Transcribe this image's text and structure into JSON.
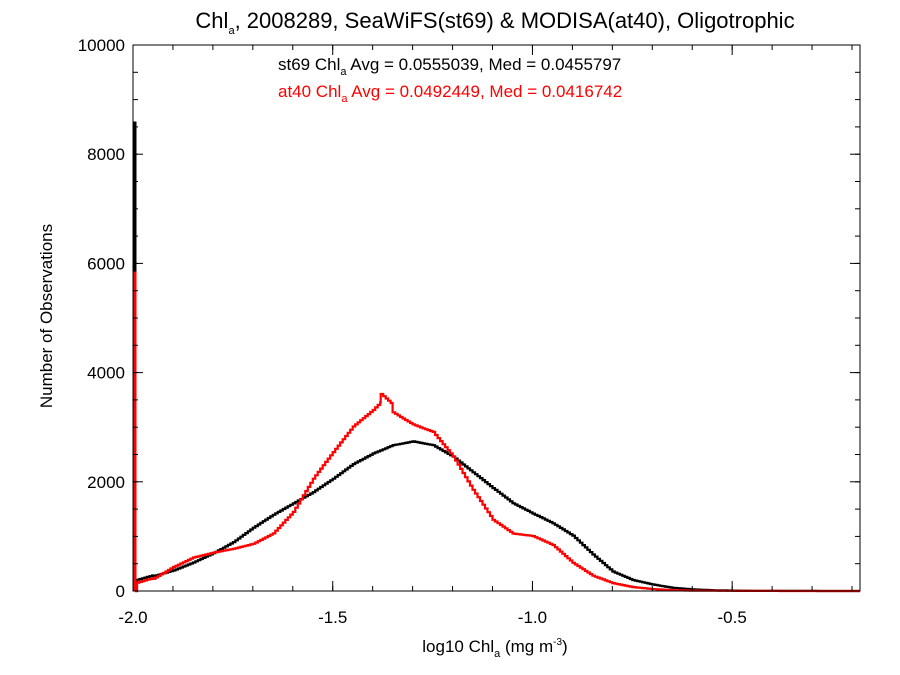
{
  "chart_data": {
    "type": "histogram-step",
    "title": {
      "main": "Chl",
      "sub": "a",
      "rest": ", 2008289, SeaWiFS(st69) & MODISA(at40), Oligotrophic"
    },
    "xlabel": {
      "main": "log10 Chl",
      "sub": "a",
      "unit_pre": " (mg m",
      "sup": "-3",
      "unit_post": ")"
    },
    "ylabel": "Number of Observations",
    "xlim": [
      -2.0,
      -0.18
    ],
    "ylim": [
      0,
      10000
    ],
    "x_ticks": [
      -2.0,
      -1.5,
      -1.0,
      -0.5
    ],
    "x_tick_labels": [
      "-2.0",
      "-1.5",
      "-1.0",
      "-0.5"
    ],
    "y_ticks": [
      0,
      2000,
      4000,
      6000,
      8000,
      10000
    ],
    "y_tick_labels": [
      "0",
      "2000",
      "4000",
      "6000",
      "8000",
      "10000"
    ],
    "annotations": [
      {
        "pre": "st69 Chl",
        "sub": "a",
        "post": " Avg = 0.0555039, Med = 0.0455797",
        "color": "#000000"
      },
      {
        "pre": "at40 Chl",
        "sub": "a",
        "post": " Avg = 0.0492449, Med = 0.0416742",
        "color": "#ff0000"
      }
    ],
    "series": [
      {
        "color": "#000000",
        "spike": {
          "x": -1.995,
          "y": 8600
        },
        "points": [
          [
            -1.995,
            0
          ],
          [
            -1.99,
            200
          ],
          [
            -1.95,
            280
          ],
          [
            -1.9,
            380
          ],
          [
            -1.85,
            520
          ],
          [
            -1.8,
            680
          ],
          [
            -1.75,
            870
          ],
          [
            -1.7,
            1120
          ],
          [
            -1.65,
            1350
          ],
          [
            -1.6,
            1560
          ],
          [
            -1.55,
            1780
          ],
          [
            -1.5,
            2050
          ],
          [
            -1.45,
            2350
          ],
          [
            -1.4,
            2580
          ],
          [
            -1.35,
            2760
          ],
          [
            -1.3,
            2840
          ],
          [
            -1.25,
            2760
          ],
          [
            -1.2,
            2520
          ],
          [
            -1.15,
            2200
          ],
          [
            -1.1,
            1880
          ],
          [
            -1.05,
            1580
          ],
          [
            -1.0,
            1380
          ],
          [
            -0.95,
            1200
          ],
          [
            -0.9,
            980
          ],
          [
            -0.85,
            650
          ],
          [
            -0.8,
            350
          ],
          [
            -0.75,
            200
          ],
          [
            -0.7,
            120
          ],
          [
            -0.65,
            60
          ],
          [
            -0.6,
            30
          ],
          [
            -0.55,
            15
          ],
          [
            -0.5,
            8
          ],
          [
            -0.45,
            4
          ],
          [
            -0.4,
            2
          ],
          [
            -0.3,
            1
          ],
          [
            -0.18,
            0
          ]
        ]
      },
      {
        "color": "#ff0000",
        "spike": {
          "x": -1.995,
          "y": 5850
        },
        "points": [
          [
            -1.995,
            0
          ],
          [
            -1.99,
            150
          ],
          [
            -1.95,
            230
          ],
          [
            -1.9,
            450
          ],
          [
            -1.85,
            620
          ],
          [
            -1.8,
            700
          ],
          [
            -1.75,
            760
          ],
          [
            -1.7,
            840
          ],
          [
            -1.65,
            1020
          ],
          [
            -1.6,
            1400
          ],
          [
            -1.55,
            2000
          ],
          [
            -1.5,
            2500
          ],
          [
            -1.45,
            3000
          ],
          [
            -1.4,
            3350
          ],
          [
            -1.38,
            3520
          ],
          [
            -1.35,
            3350
          ],
          [
            -1.3,
            3150
          ],
          [
            -1.25,
            3020
          ],
          [
            -1.2,
            2550
          ],
          [
            -1.15,
            1900
          ],
          [
            -1.1,
            1320
          ],
          [
            -1.05,
            1050
          ],
          [
            -1.0,
            990
          ],
          [
            -0.95,
            820
          ],
          [
            -0.9,
            500
          ],
          [
            -0.85,
            270
          ],
          [
            -0.8,
            140
          ],
          [
            -0.75,
            70
          ],
          [
            -0.7,
            35
          ],
          [
            -0.65,
            15
          ],
          [
            -0.6,
            7
          ],
          [
            -0.5,
            3
          ],
          [
            -0.4,
            1
          ],
          [
            -0.18,
            0
          ]
        ]
      }
    ]
  }
}
